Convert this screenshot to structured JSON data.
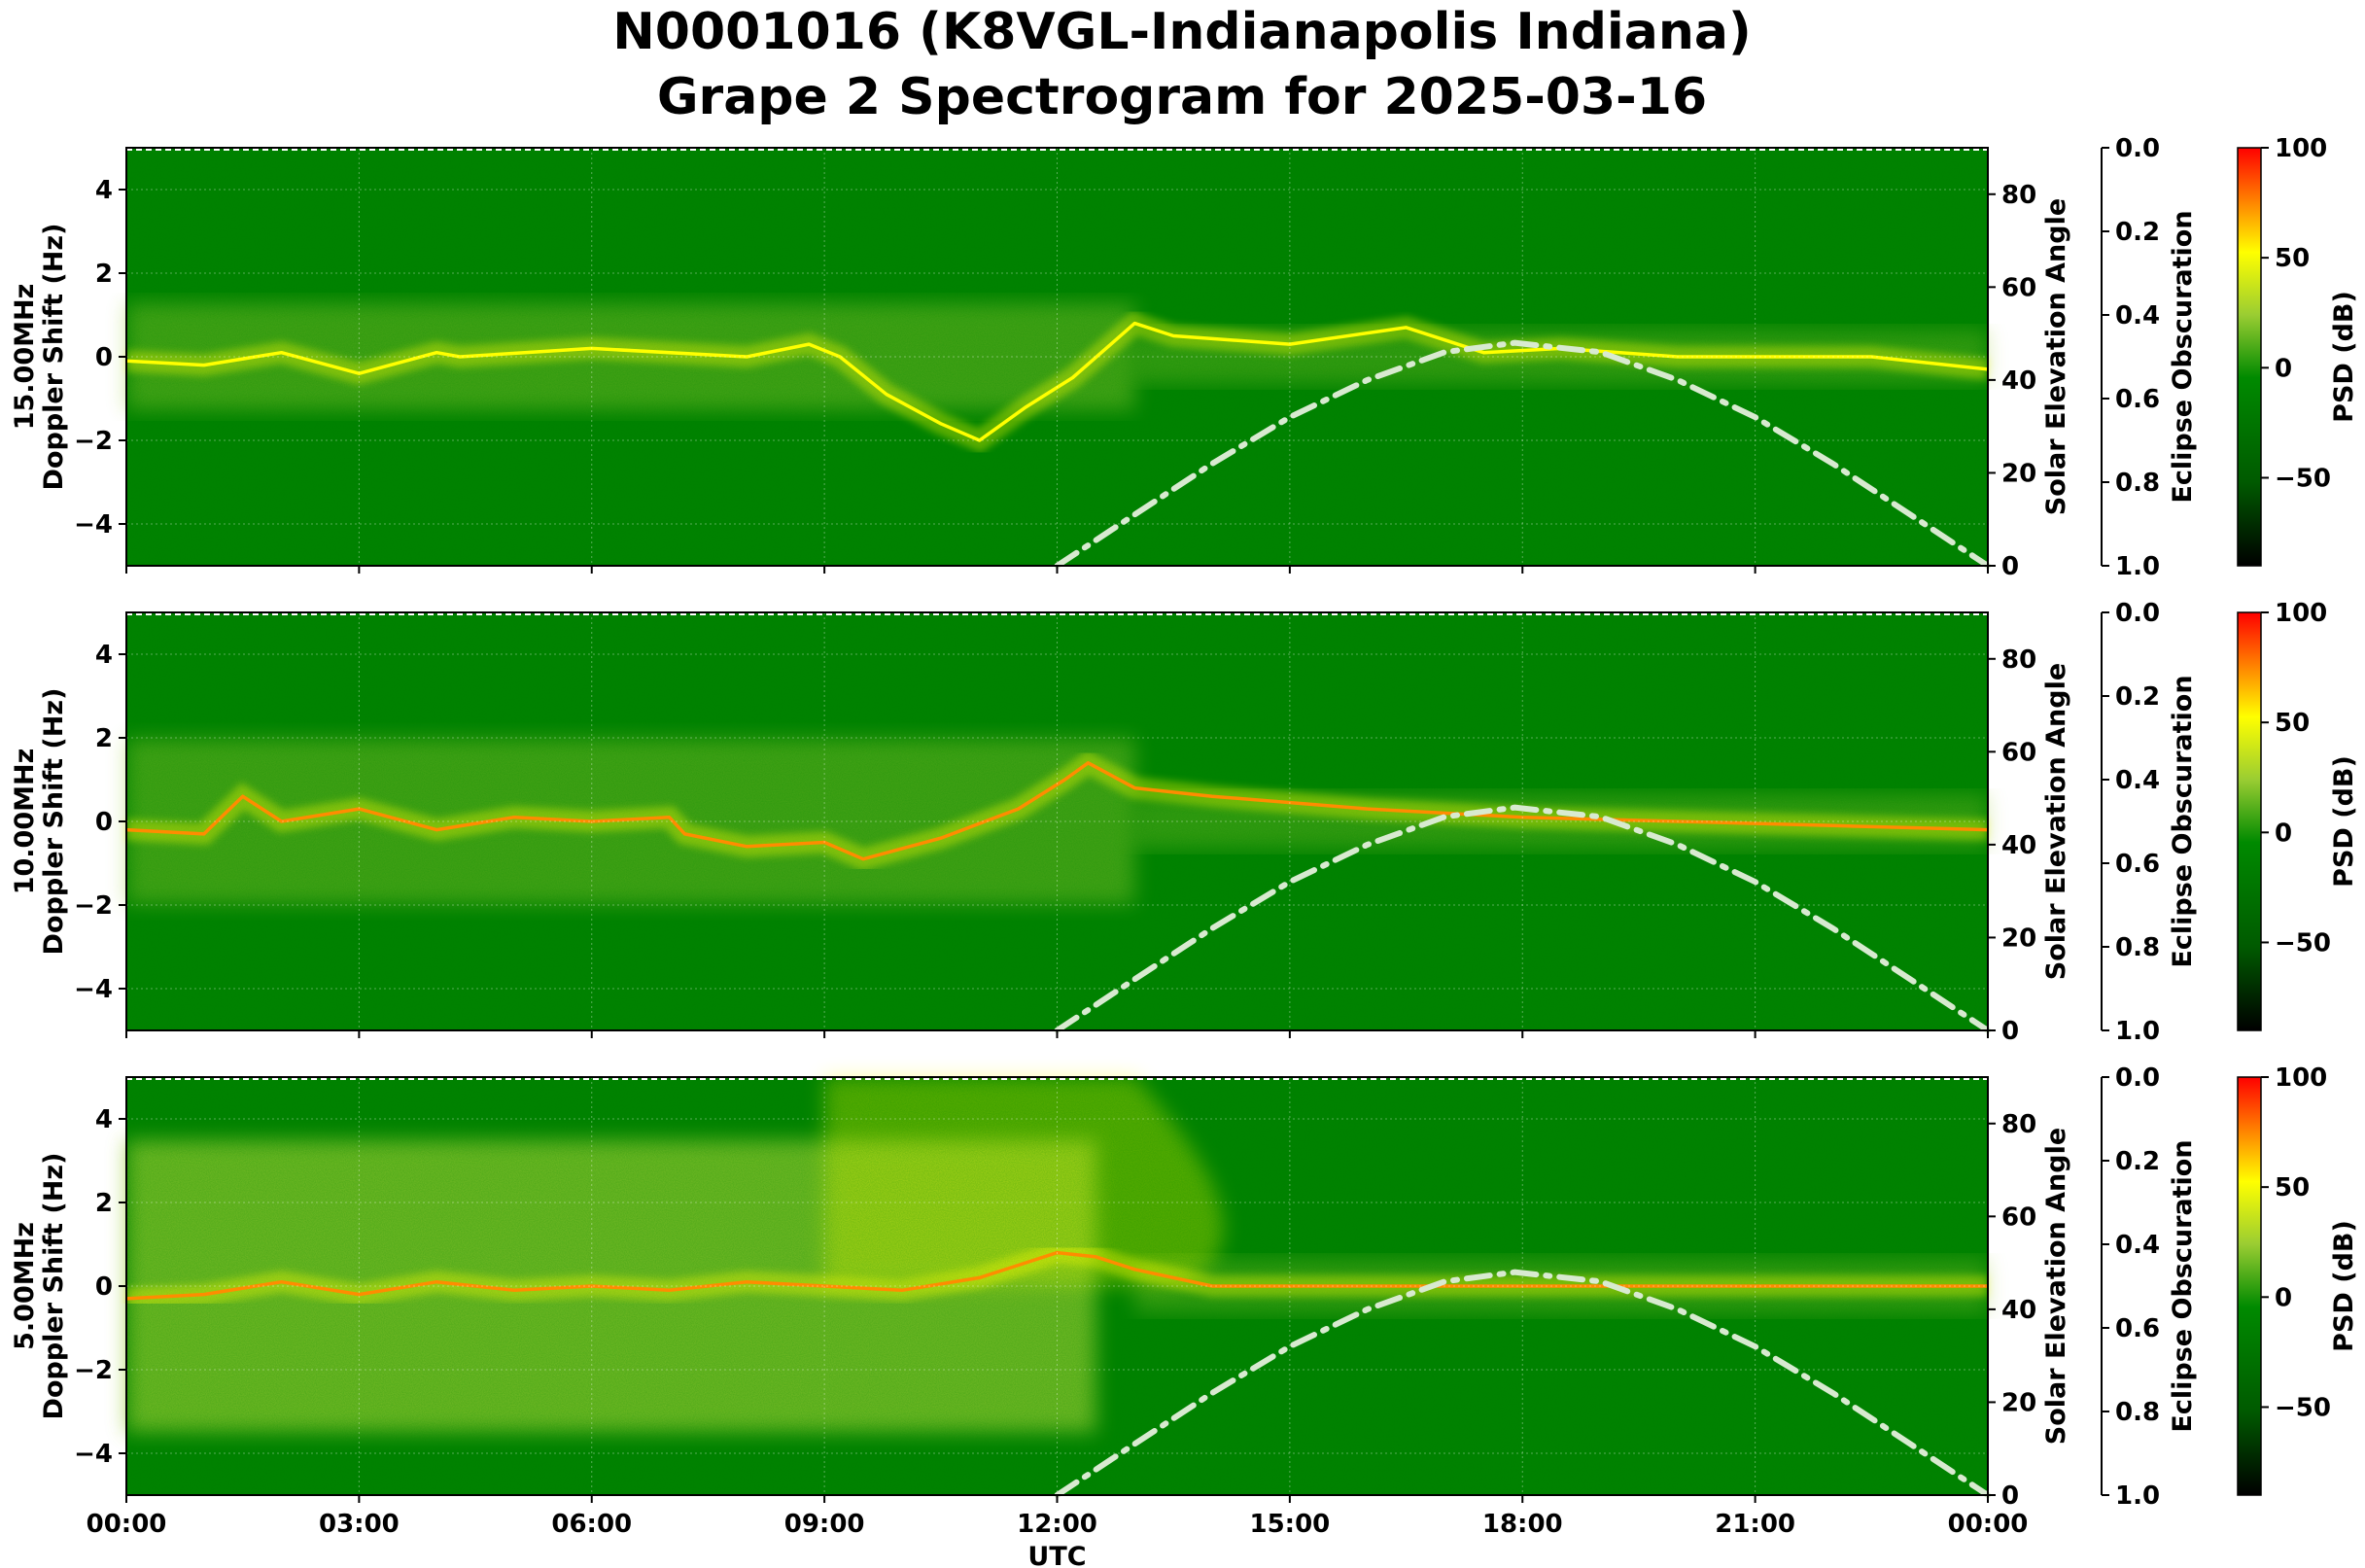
{
  "title_line1": "N0001016 (K8VGL-Indianapolis Indiana)",
  "title_line2": "Grape 2 Spectrogram for 2025-03-16",
  "colors": {
    "cmap": [
      "#000000",
      "#006400",
      "#008000",
      "#9acd32",
      "#ffff00",
      "#ff0000"
    ],
    "sun_curve": "#d8ead0"
  },
  "chart_data": [
    {
      "type": "heatmap",
      "frequency_label": "15.00MHz",
      "ylabel": "Doppler Shift (Hz)",
      "xlabel": "",
      "ylim": [
        -5,
        5
      ],
      "yticks": [
        -4,
        -2,
        0,
        2,
        4
      ],
      "xticks": [
        "00:00",
        "03:00",
        "06:00",
        "09:00",
        "12:00",
        "15:00",
        "18:00",
        "21:00",
        "00:00"
      ],
      "grid": true,
      "doppler_trace": {
        "x_hours": [
          0,
          1,
          2,
          3,
          4,
          4.3,
          6,
          8,
          8.8,
          9.2,
          9.8,
          10.5,
          11,
          11.6,
          12.2,
          13,
          13.5,
          15,
          16.5,
          17.5,
          18.5,
          20,
          21,
          22.5,
          24
        ],
        "y_hz": [
          -0.1,
          -0.2,
          0.1,
          -0.4,
          0.1,
          0.0,
          0.2,
          0.0,
          0.3,
          0.0,
          -0.9,
          -1.6,
          -2.0,
          -1.2,
          -0.5,
          0.8,
          0.5,
          0.3,
          0.7,
          0.1,
          0.2,
          0.0,
          0.0,
          0.0,
          -0.3
        ]
      },
      "right_axis_1": {
        "label": "Solar Elevation Angle",
        "range": [
          0,
          90
        ],
        "ticks": [
          0,
          20,
          40,
          60,
          80
        ]
      },
      "right_axis_2": {
        "label": "Eclipse Obscuration",
        "range": [
          1.0,
          0.0
        ],
        "ticks": [
          "0.0",
          "0.2",
          "0.4",
          "0.6",
          "0.8",
          "1.0"
        ]
      },
      "colorbar": {
        "label": "PSD (dB)",
        "range": [
          -90,
          100
        ],
        "ticks": [
          "100",
          "50",
          "0",
          "−50"
        ]
      },
      "solar_elevation": {
        "x_hours": [
          12,
          13,
          14,
          15,
          16,
          17,
          17.9,
          19,
          20,
          21,
          22,
          23,
          24
        ],
        "elevation_deg": [
          0,
          11,
          22,
          32,
          40,
          46,
          48,
          46,
          40,
          32,
          22,
          11,
          0
        ]
      }
    },
    {
      "type": "heatmap",
      "frequency_label": "10.00MHz",
      "ylabel": "Doppler Shift (Hz)",
      "xlabel": "",
      "ylim": [
        -5,
        5
      ],
      "yticks": [
        -4,
        -2,
        0,
        2,
        4
      ],
      "xticks": [
        "00:00",
        "03:00",
        "06:00",
        "09:00",
        "12:00",
        "15:00",
        "18:00",
        "21:00",
        "00:00"
      ],
      "grid": true,
      "doppler_trace": {
        "x_hours": [
          0,
          1,
          1.5,
          2,
          3,
          4,
          5,
          6,
          7,
          7.2,
          8,
          9,
          9.5,
          10.5,
          11.5,
          12.1,
          12.4,
          13,
          14,
          16,
          18,
          20,
          22,
          24
        ],
        "y_hz": [
          -0.2,
          -0.3,
          0.6,
          0.0,
          0.3,
          -0.2,
          0.1,
          0.0,
          0.1,
          -0.3,
          -0.6,
          -0.5,
          -0.9,
          -0.4,
          0.3,
          1.0,
          1.4,
          0.8,
          0.6,
          0.3,
          0.1,
          0.0,
          -0.1,
          -0.2
        ]
      },
      "right_axis_1": {
        "label": "Solar Elevation Angle",
        "range": [
          0,
          90
        ],
        "ticks": [
          0,
          20,
          40,
          60,
          80
        ]
      },
      "right_axis_2": {
        "label": "Eclipse Obscuration",
        "range": [
          1.0,
          0.0
        ],
        "ticks": [
          "0.0",
          "0.2",
          "0.4",
          "0.6",
          "0.8",
          "1.0"
        ]
      },
      "colorbar": {
        "label": "PSD (dB)",
        "range": [
          -90,
          100
        ],
        "ticks": [
          "100",
          "50",
          "0",
          "−50"
        ]
      },
      "solar_elevation": {
        "x_hours": [
          12,
          13,
          14,
          15,
          16,
          17,
          17.9,
          19,
          20,
          21,
          22,
          23,
          24
        ],
        "elevation_deg": [
          0,
          11,
          22,
          32,
          40,
          46,
          48,
          46,
          40,
          32,
          22,
          11,
          0
        ]
      }
    },
    {
      "type": "heatmap",
      "frequency_label": "5.00MHz",
      "ylabel": "Doppler Shift (Hz)",
      "xlabel": "UTC",
      "ylim": [
        -5,
        5
      ],
      "yticks": [
        -4,
        -2,
        0,
        2,
        4
      ],
      "xticks": [
        "00:00",
        "03:00",
        "06:00",
        "09:00",
        "12:00",
        "15:00",
        "18:00",
        "21:00",
        "00:00"
      ],
      "grid": true,
      "doppler_trace": {
        "x_hours": [
          0,
          1,
          2,
          3,
          4,
          5,
          6,
          7,
          8,
          9,
          10,
          11,
          11.5,
          12,
          12.5,
          13,
          14,
          16,
          18,
          20,
          22,
          24
        ],
        "y_hz": [
          -0.3,
          -0.2,
          0.1,
          -0.2,
          0.1,
          -0.1,
          0.0,
          -0.1,
          0.1,
          0.0,
          -0.1,
          0.2,
          0.5,
          0.8,
          0.7,
          0.4,
          0.0,
          0.0,
          0.0,
          0.0,
          0.0,
          0.0
        ]
      },
      "right_axis_1": {
        "label": "Solar Elevation Angle",
        "range": [
          0,
          90
        ],
        "ticks": [
          0,
          20,
          40,
          60,
          80
        ]
      },
      "right_axis_2": {
        "label": "Eclipse Obscuration",
        "range": [
          1.0,
          0.0
        ],
        "ticks": [
          "0.0",
          "0.2",
          "0.4",
          "0.6",
          "0.8",
          "1.0"
        ]
      },
      "colorbar": {
        "label": "PSD (dB)",
        "range": [
          -90,
          100
        ],
        "ticks": [
          "100",
          "50",
          "0",
          "−50"
        ]
      },
      "solar_elevation": {
        "x_hours": [
          12,
          13,
          14,
          15,
          16,
          17,
          17.9,
          19,
          20,
          21,
          22,
          23,
          24
        ],
        "elevation_deg": [
          0,
          11,
          22,
          32,
          40,
          46,
          48,
          46,
          40,
          32,
          22,
          11,
          0
        ]
      }
    }
  ]
}
